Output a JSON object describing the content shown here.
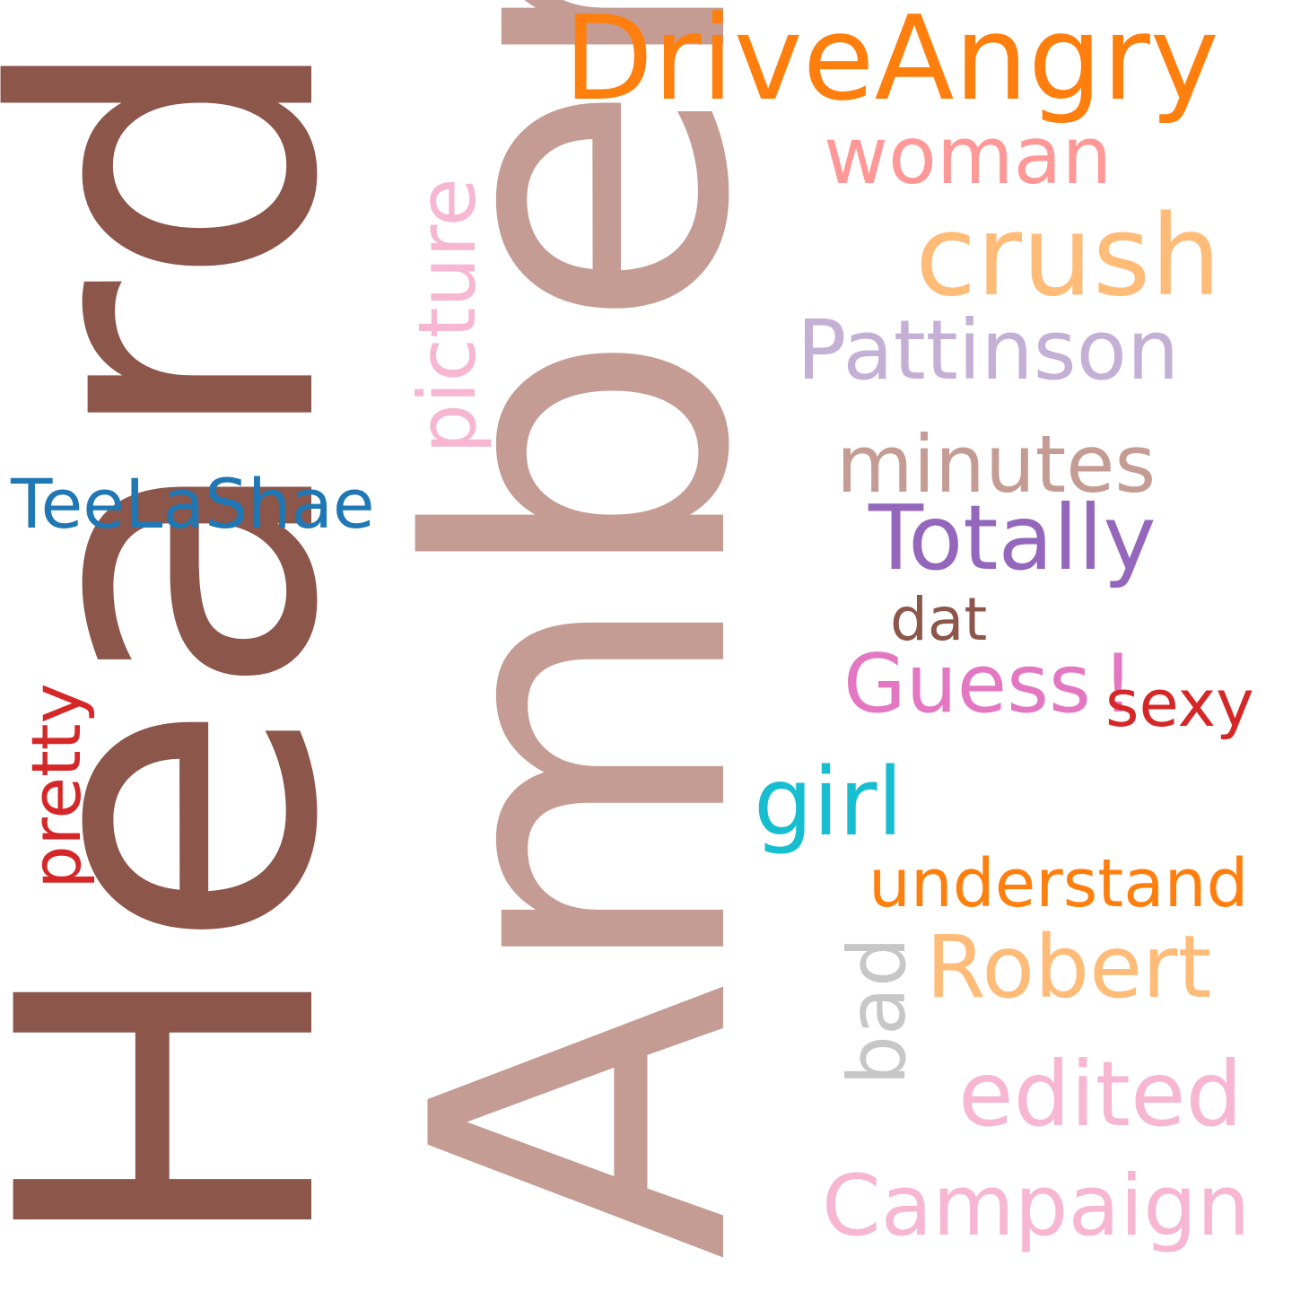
{
  "words": {
    "heard": {
      "text": "Heard",
      "color": "#8c564b"
    },
    "amber": {
      "text": "Amber",
      "color": "#c49c94"
    },
    "driveangry": {
      "text": "DriveAngry",
      "color": "#ff7f0e"
    },
    "woman": {
      "text": "woman",
      "color": "#ff9896"
    },
    "crush": {
      "text": "crush",
      "color": "#ffbb78"
    },
    "picture": {
      "text": "picture",
      "color": "#f7b6d2"
    },
    "pattinson": {
      "text": "Pattinson",
      "color": "#c5b0d5"
    },
    "minutes": {
      "text": "minutes",
      "color": "#c49c94"
    },
    "teelashae": {
      "text": "TeeLaShae",
      "color": "#1f77b4"
    },
    "totally": {
      "text": "Totally",
      "color": "#9467bd"
    },
    "dat": {
      "text": "dat",
      "color": "#8c564b"
    },
    "guess": {
      "text": "Guess",
      "color": "#e377c2"
    },
    "exclamation": {
      "text": "!",
      "color": "#e377c2"
    },
    "sexy": {
      "text": "sexy",
      "color": "#d62728"
    },
    "pretty": {
      "text": "pretty",
      "color": "#d62728"
    },
    "girl": {
      "text": "girl",
      "color": "#17becf"
    },
    "understand": {
      "text": "understand",
      "color": "#ff7f0e"
    },
    "bad": {
      "text": "bad",
      "color": "#c7c7c7"
    },
    "robert": {
      "text": "Robert",
      "color": "#ffbb78"
    },
    "edited": {
      "text": "edited",
      "color": "#f7b6d2"
    },
    "campaign": {
      "text": "Campaign",
      "color": "#f7b6d2"
    }
  }
}
